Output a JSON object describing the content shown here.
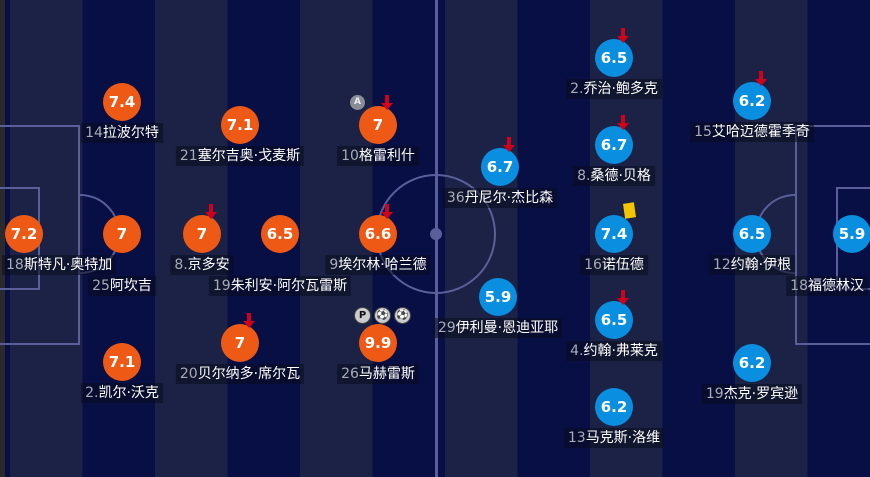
{
  "colors": {
    "home": "#ee5a16",
    "away": "#0a8ee0",
    "substitution_arrow": "#d0021b",
    "yellow_card": "#f2c500"
  },
  "home_players": [
    {
      "rating": "7.4",
      "number": "14",
      "name": "拉波尔特",
      "events": []
    },
    {
      "rating": "7.1",
      "number": "21",
      "name": "塞尔吉奥·戈麦斯",
      "events": []
    },
    {
      "rating": "7",
      "number": "10",
      "name": "格雷利什",
      "events": [
        "captain",
        "substituted"
      ],
      "captain_label": "A"
    },
    {
      "rating": "7.2",
      "number": "18",
      "name": "斯特凡·奥特加",
      "events": []
    },
    {
      "rating": "7",
      "number": "25",
      "name": "阿坎吉",
      "events": []
    },
    {
      "rating": "7",
      "number": "8.",
      "name": "京多安",
      "events": [
        "substituted"
      ]
    },
    {
      "rating": "6.5",
      "number": "19",
      "name": "朱利安·阿尔瓦雷斯",
      "events": []
    },
    {
      "rating": "6.6",
      "number": "9",
      "name": "埃尔林·哈兰德",
      "events": [
        "substituted"
      ]
    },
    {
      "rating": "7.1",
      "number": "2.",
      "name": "凯尔·沃克",
      "events": []
    },
    {
      "rating": "7",
      "number": "20",
      "name": "贝尔纳多·席尔瓦",
      "events": [
        "substituted"
      ]
    },
    {
      "rating": "9.9",
      "number": "26",
      "name": "马赫雷斯",
      "events": [
        "penalty-goal",
        "goal",
        "goal"
      ],
      "penalty_label": "P"
    }
  ],
  "away_players": [
    {
      "rating": "6.5",
      "number": "2.",
      "name": "乔治·鲍多克",
      "events": [
        "substituted"
      ]
    },
    {
      "rating": "6.2",
      "number": "15",
      "name": "艾哈迈德霍季奇",
      "events": [
        "substituted"
      ]
    },
    {
      "rating": "6.7",
      "number": "8.",
      "name": "桑德·贝格",
      "events": [
        "substituted"
      ]
    },
    {
      "rating": "6.7",
      "number": "36",
      "name": "丹尼尔·杰比森",
      "events": [
        "substituted"
      ]
    },
    {
      "rating": "7.4",
      "number": "16",
      "name": "诺伍德",
      "events": [
        "yellow-card"
      ]
    },
    {
      "rating": "6.5",
      "number": "12",
      "name": "约翰·伊根",
      "events": []
    },
    {
      "rating": "5.9",
      "number": "18",
      "name": "福德林汉",
      "events": []
    },
    {
      "rating": "5.9",
      "number": "29",
      "name": "伊利曼·恩迪亚耶",
      "events": []
    },
    {
      "rating": "6.5",
      "number": "4.",
      "name": "约翰·弗莱克",
      "events": [
        "substituted"
      ]
    },
    {
      "rating": "6.2",
      "number": "19",
      "name": "杰克·罗宾逊",
      "events": []
    },
    {
      "rating": "6.2",
      "number": "13",
      "name": "马克斯·洛维",
      "events": []
    }
  ]
}
